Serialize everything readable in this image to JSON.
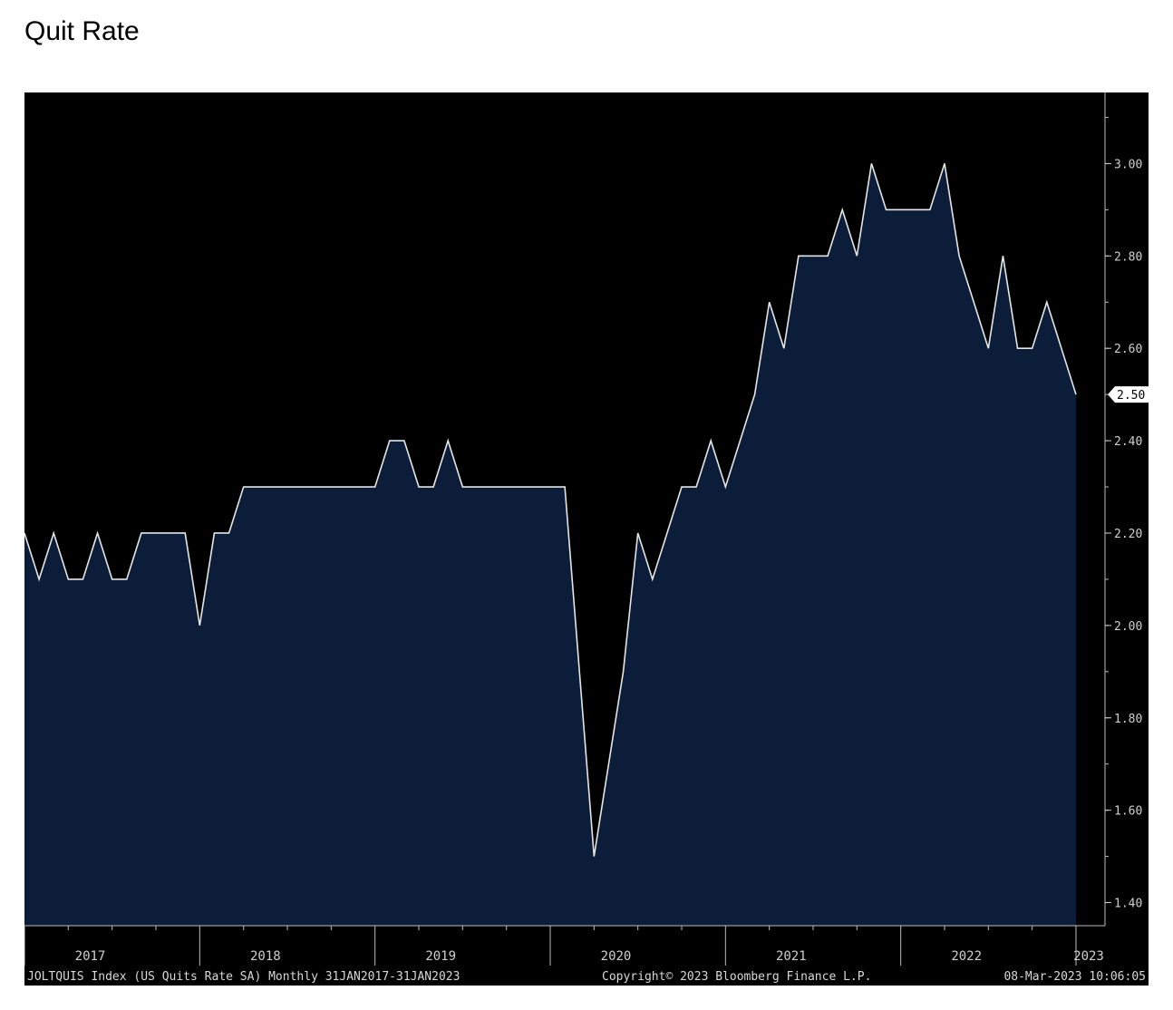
{
  "page": {
    "title": "Quit Rate"
  },
  "chart_data": {
    "type": "area",
    "ticker": "JOLTQUIS Index (US Quits Rate SA)",
    "frequency": "Monthly",
    "date_range": "31JAN2017-31JAN2023",
    "copyright": "Copyright© 2023 Bloomberg Finance L.P.",
    "timestamp": "08-Mar-2023 10:06:05",
    "x_start": "2017-01",
    "x_end": "2023-01",
    "year_labels": [
      "2017",
      "2018",
      "2019",
      "2020",
      "2021",
      "2022",
      "2023"
    ],
    "yticks": [
      "3.00",
      "2.80",
      "2.60",
      "2.40",
      "2.20",
      "2.00",
      "1.80",
      "1.60",
      "1.40"
    ],
    "ylim": [
      1.35,
      3.15
    ],
    "last_value_label": "2.50",
    "values": [
      2.2,
      2.1,
      2.2,
      2.1,
      2.1,
      2.2,
      2.1,
      2.1,
      2.2,
      2.2,
      2.2,
      2.2,
      2.0,
      2.2,
      2.2,
      2.3,
      2.3,
      2.3,
      2.3,
      2.3,
      2.3,
      2.3,
      2.3,
      2.3,
      2.3,
      2.4,
      2.4,
      2.3,
      2.3,
      2.4,
      2.3,
      2.3,
      2.3,
      2.3,
      2.3,
      2.3,
      2.3,
      2.3,
      1.9,
      1.5,
      1.7,
      1.9,
      2.2,
      2.1,
      2.2,
      2.3,
      2.3,
      2.4,
      2.3,
      2.4,
      2.5,
      2.7,
      2.6,
      2.8,
      2.8,
      2.8,
      2.9,
      2.8,
      3.0,
      2.9,
      2.9,
      2.9,
      2.9,
      3.0,
      2.8,
      2.7,
      2.6,
      2.8,
      2.6,
      2.6,
      2.7,
      2.6,
      2.5
    ],
    "colors": {
      "background": "#000000",
      "fill": "#0b1d38",
      "line": "#e6e6e6"
    },
    "grid": false
  }
}
